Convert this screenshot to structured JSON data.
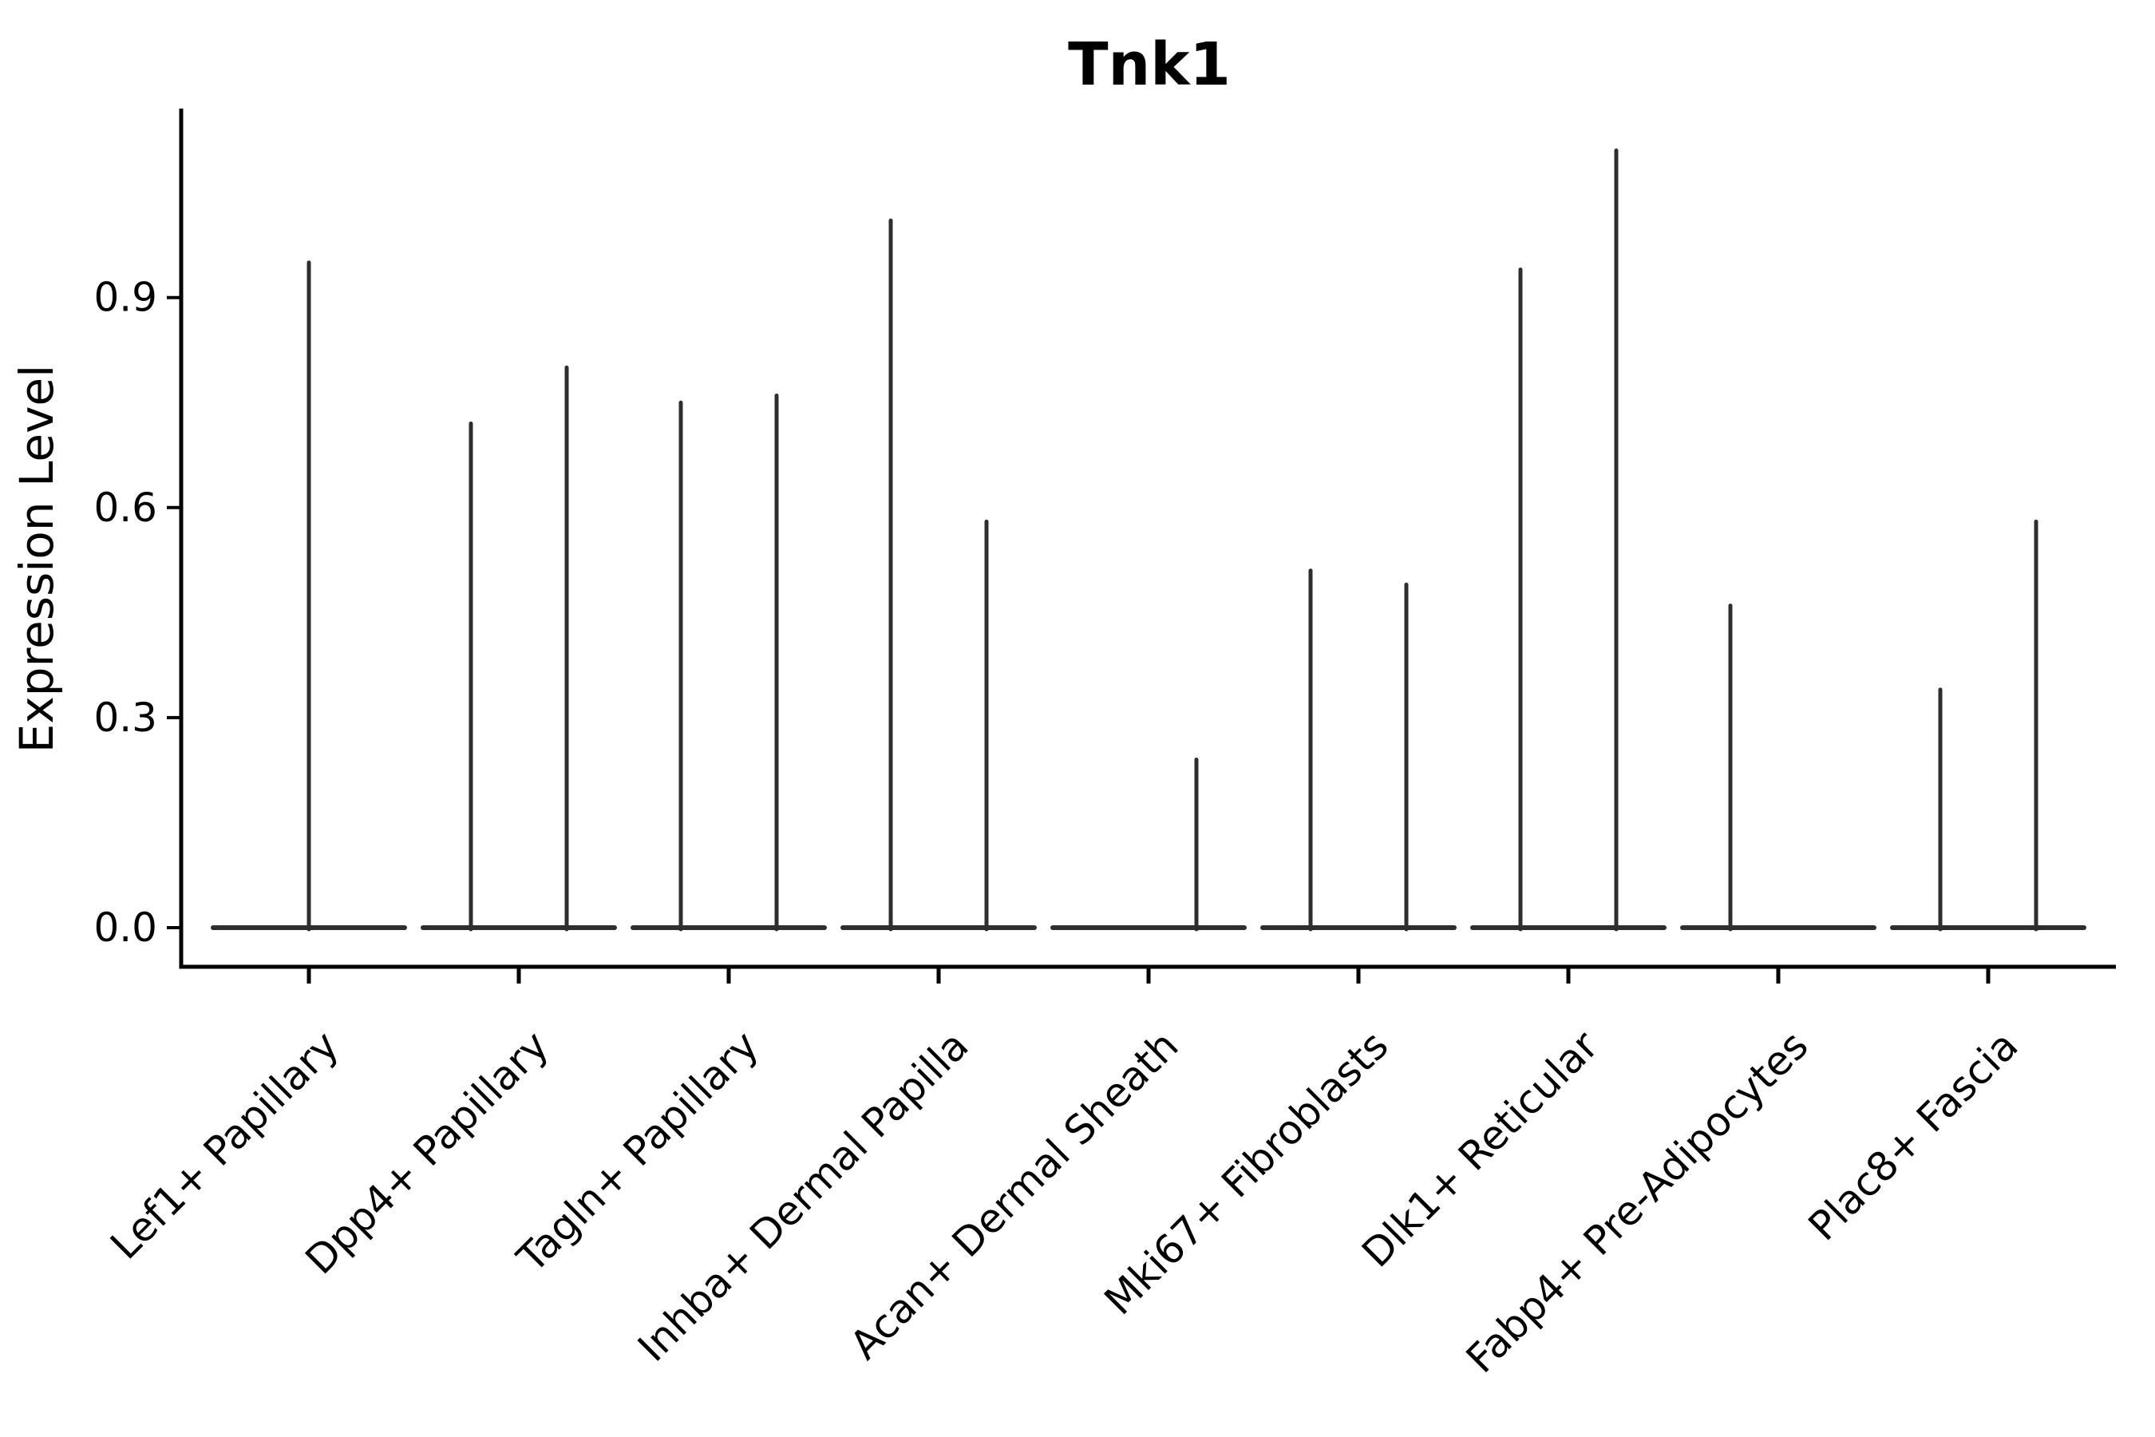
{
  "page": {
    "background": "#ffffff"
  },
  "chart_data": {
    "type": "violin",
    "title": "Tnk1",
    "ylabel": "Expression Level",
    "xlabel": "",
    "grid": false,
    "legend_position": "none",
    "ylim": [
      -0.056,
      1.17
    ],
    "ytick_labels": [
      "0.0",
      "0.3",
      "0.6",
      "0.9"
    ],
    "ytick_values": [
      0.0,
      0.3,
      0.6,
      0.9
    ],
    "categories": [
      "Lef1+ Papillary",
      "Dpp4+ Papillary",
      "Tagln+ Papillary",
      "Inhba+ Dermal Papilla",
      "Acan+ Dermal Sheath",
      "Mki67+ Fibroblasts",
      "Dlk1+ Reticular",
      "Fabp4+ Pre-Adipocytes",
      "Plac8+ Fascia"
    ],
    "violins": [
      {
        "category": "Lef1+ Papillary",
        "spikes": [
          {
            "side": "center",
            "max": 0.95
          }
        ]
      },
      {
        "category": "Dpp4+ Papillary",
        "spikes": [
          {
            "side": "left",
            "max": 0.72
          },
          {
            "side": "right",
            "max": 0.8
          }
        ]
      },
      {
        "category": "Tagln+ Papillary",
        "spikes": [
          {
            "side": "left",
            "max": 0.75
          },
          {
            "side": "right",
            "max": 0.76
          }
        ]
      },
      {
        "category": "Inhba+ Dermal Papilla",
        "spikes": [
          {
            "side": "left",
            "max": 1.01
          },
          {
            "side": "right",
            "max": 0.58
          }
        ]
      },
      {
        "category": "Acan+ Dermal Sheath",
        "spikes": [
          {
            "side": "right",
            "max": 0.24
          }
        ]
      },
      {
        "category": "Mki67+ Fibroblasts",
        "spikes": [
          {
            "side": "left",
            "max": 0.51
          },
          {
            "side": "right",
            "max": 0.49
          }
        ]
      },
      {
        "category": "Dlk1+ Reticular",
        "spikes": [
          {
            "side": "left",
            "max": 0.94
          },
          {
            "side": "right",
            "max": 1.11
          }
        ]
      },
      {
        "category": "Fabp4+ Pre-Adipocytes",
        "spikes": [
          {
            "side": "left",
            "max": 0.46
          }
        ]
      },
      {
        "category": "Plac8+ Fascia",
        "spikes": [
          {
            "side": "left",
            "max": 0.34
          },
          {
            "side": "right",
            "max": 0.58
          }
        ]
      }
    ],
    "colors": {
      "ink": "#000000",
      "violin": "#2e2e2e",
      "background": "#ffffff"
    }
  }
}
